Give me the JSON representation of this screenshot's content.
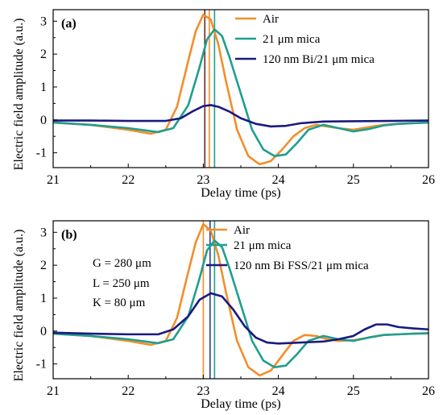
{
  "colors": {
    "air": "#F28E2B",
    "mica": "#1F9E8F",
    "bi": "#1A1A80",
    "vline_dark": "#6B2A1A",
    "vline_bi_b": "#2C3E9A"
  },
  "chart_data": [
    {
      "type": "line",
      "panel_label": "(a)",
      "xlabel": "Delay time (ps)",
      "ylabel": "Electric field amplitude (a.u.)",
      "xlim": [
        21,
        26
      ],
      "ylim": [
        -1.45,
        3.35
      ],
      "xticks": [
        21,
        22,
        23,
        24,
        25,
        26
      ],
      "yticks": [
        -1,
        0,
        1,
        2,
        3
      ],
      "grid": false,
      "legend_position": "top-right",
      "series": [
        {
          "name": "Air",
          "color_key": "air",
          "x": [
            21.0,
            21.5,
            22.0,
            22.3,
            22.5,
            22.65,
            22.8,
            22.9,
            23.0,
            23.1,
            23.2,
            23.3,
            23.45,
            23.6,
            23.75,
            23.9,
            24.05,
            24.2,
            24.35,
            24.5,
            24.65,
            24.8,
            25.0,
            25.2,
            25.4,
            25.6,
            25.8,
            26.0
          ],
          "y": [
            -0.08,
            -0.15,
            -0.3,
            -0.42,
            -0.3,
            0.4,
            1.8,
            2.7,
            3.2,
            3.05,
            2.3,
            1.2,
            -0.3,
            -1.1,
            -1.35,
            -1.25,
            -0.9,
            -0.5,
            -0.25,
            -0.15,
            -0.2,
            -0.25,
            -0.3,
            -0.22,
            -0.15,
            -0.12,
            -0.1,
            -0.08
          ]
        },
        {
          "name": "21 μm mica",
          "color_key": "mica",
          "x": [
            21.0,
            21.5,
            22.0,
            22.4,
            22.6,
            22.8,
            22.95,
            23.05,
            23.15,
            23.25,
            23.35,
            23.5,
            23.65,
            23.8,
            23.95,
            24.1,
            24.25,
            24.4,
            24.6,
            24.8,
            25.0,
            25.2,
            25.4,
            25.6,
            25.8,
            26.0
          ],
          "y": [
            -0.08,
            -0.15,
            -0.25,
            -0.37,
            -0.25,
            0.45,
            1.6,
            2.45,
            2.75,
            2.55,
            1.9,
            0.8,
            -0.3,
            -0.9,
            -1.1,
            -1.05,
            -0.7,
            -0.3,
            -0.15,
            -0.25,
            -0.35,
            -0.28,
            -0.17,
            -0.12,
            -0.1,
            -0.08
          ]
        },
        {
          "name": "120 nm Bi/21 μm mica",
          "color_key": "bi",
          "x": [
            21.0,
            21.5,
            22.0,
            22.5,
            22.7,
            22.85,
            23.0,
            23.1,
            23.2,
            23.35,
            23.5,
            23.7,
            23.9,
            24.1,
            24.3,
            24.6,
            25.0,
            25.5,
            26.0
          ],
          "y": [
            -0.02,
            -0.02,
            -0.03,
            -0.03,
            0.05,
            0.25,
            0.42,
            0.45,
            0.4,
            0.25,
            0.05,
            -0.12,
            -0.2,
            -0.18,
            -0.1,
            -0.05,
            -0.04,
            -0.03,
            -0.02
          ]
        }
      ],
      "vlines": [
        {
          "x": 23.02,
          "color_key": "vline_dark"
        },
        {
          "x": 23.08,
          "color_key": "air"
        },
        {
          "x": 23.15,
          "color_key": "mica"
        }
      ]
    },
    {
      "type": "line",
      "panel_label": "(b)",
      "xlabel": "Delay time (ps)",
      "ylabel": "Electric field amplitude (a.u.)",
      "xlim": [
        21,
        26
      ],
      "ylim": [
        -1.45,
        3.35
      ],
      "xticks": [
        21,
        22,
        23,
        24,
        25,
        26
      ],
      "yticks": [
        -1,
        0,
        1,
        2,
        3
      ],
      "grid": false,
      "legend_position": "top-right",
      "annotations": [
        "G = 280 μm",
        "L = 250 μm",
        "K = 80 μm"
      ],
      "series": [
        {
          "name": "Air",
          "color_key": "air",
          "x": [
            21.0,
            21.5,
            22.0,
            22.3,
            22.5,
            22.65,
            22.8,
            22.9,
            23.0,
            23.1,
            23.2,
            23.3,
            23.45,
            23.6,
            23.75,
            23.9,
            24.05,
            24.2,
            24.35,
            24.5,
            24.65,
            24.8,
            25.0,
            25.2,
            25.4,
            25.6,
            25.8,
            26.0
          ],
          "y": [
            -0.08,
            -0.15,
            -0.3,
            -0.42,
            -0.3,
            0.4,
            1.8,
            2.7,
            3.25,
            3.05,
            2.3,
            1.2,
            -0.3,
            -1.1,
            -1.35,
            -1.2,
            -0.75,
            -0.3,
            -0.12,
            -0.15,
            -0.25,
            -0.3,
            -0.28,
            -0.2,
            -0.12,
            -0.1,
            -0.08,
            -0.06
          ]
        },
        {
          "name": "21 μm mica",
          "color_key": "mica",
          "x": [
            21.0,
            21.5,
            22.0,
            22.4,
            22.6,
            22.8,
            22.95,
            23.05,
            23.15,
            23.25,
            23.35,
            23.5,
            23.65,
            23.8,
            23.95,
            24.1,
            24.25,
            24.4,
            24.6,
            24.8,
            25.0,
            25.2,
            25.4,
            25.6,
            25.8,
            26.0
          ],
          "y": [
            -0.08,
            -0.15,
            -0.25,
            -0.37,
            -0.25,
            0.45,
            1.6,
            2.45,
            2.75,
            2.55,
            1.9,
            0.8,
            -0.3,
            -0.9,
            -1.1,
            -1.05,
            -0.7,
            -0.3,
            -0.15,
            -0.25,
            -0.3,
            -0.2,
            -0.12,
            -0.1,
            -0.08,
            -0.07
          ]
        },
        {
          "name": "120 nm Bi FSS/21 μm mica",
          "color_key": "bi",
          "x": [
            21.0,
            21.5,
            22.0,
            22.4,
            22.6,
            22.8,
            22.95,
            23.1,
            23.25,
            23.4,
            23.55,
            23.7,
            23.85,
            24.0,
            24.3,
            24.6,
            24.8,
            25.0,
            25.15,
            25.3,
            25.45,
            25.6,
            25.8,
            26.0
          ],
          "y": [
            -0.05,
            -0.08,
            -0.1,
            -0.1,
            0.05,
            0.45,
            0.95,
            1.15,
            1.05,
            0.65,
            0.15,
            -0.2,
            -0.35,
            -0.38,
            -0.35,
            -0.32,
            -0.25,
            -0.15,
            0.05,
            0.2,
            0.2,
            0.12,
            0.08,
            0.05
          ]
        }
      ],
      "vlines": [
        {
          "x": 23.0,
          "color_key": "air"
        },
        {
          "x": 23.09,
          "color_key": "vline_bi_b"
        },
        {
          "x": 23.15,
          "color_key": "mica"
        }
      ]
    }
  ]
}
